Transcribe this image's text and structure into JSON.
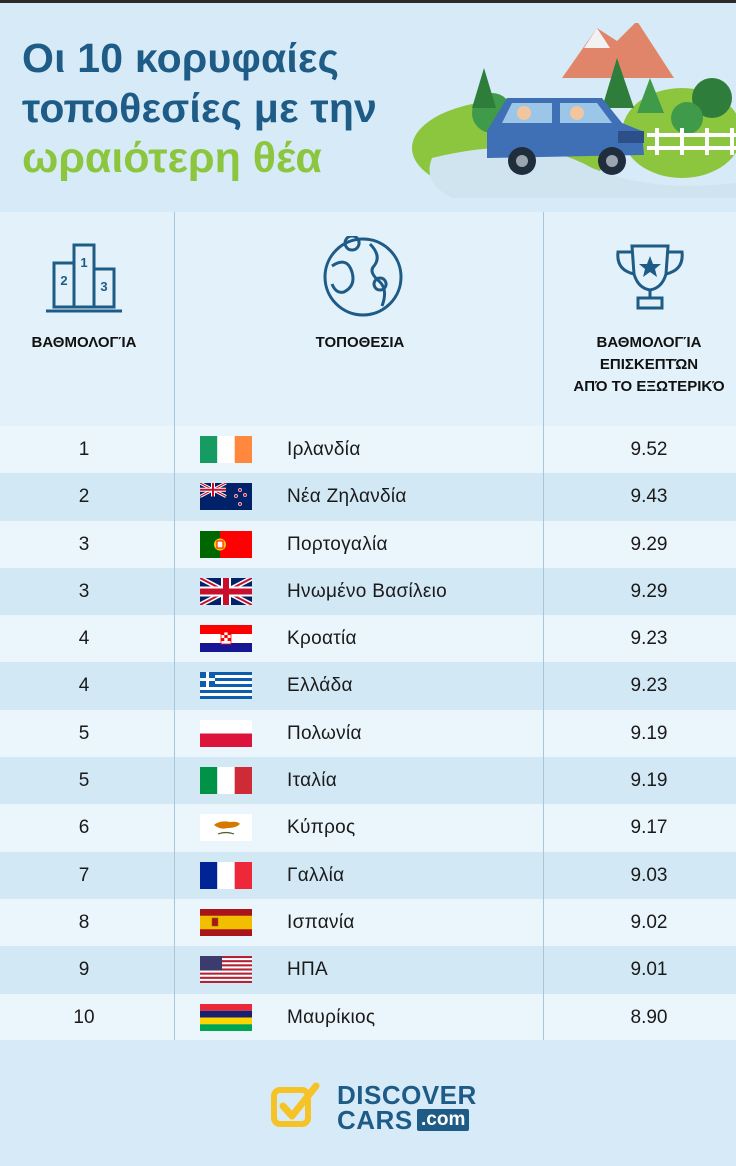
{
  "title": {
    "line1": "Οι 10 κορυφαίες",
    "line2": "τοποθεσίες με την",
    "line3": "ωραιότερη θέα"
  },
  "columns": {
    "rank": "ΒΑΘΜΟΛΟΓΊΑ",
    "location": "ΤΟΠΟΘΕΣΙΑ",
    "score_l1": "ΒΑΘΜΟΛΟΓΊΑ",
    "score_l2": "ΕΠΙΣΚΕΠΤΏΝ",
    "score_l3": "ΑΠΌ ΤΟ ΕΞΩΤΕΡΙΚΌ"
  },
  "rows": [
    {
      "rank": "1",
      "country": "Ιρλανδία",
      "score": "9.52",
      "flag": "ireland"
    },
    {
      "rank": "2",
      "country": "Νέα Ζηλανδία",
      "score": "9.43",
      "flag": "new-zealand"
    },
    {
      "rank": "3",
      "country": "Πορτογαλία",
      "score": "9.29",
      "flag": "portugal"
    },
    {
      "rank": "3",
      "country": "Ηνωμένο Βασίλειο",
      "score": "9.29",
      "flag": "united-kingdom"
    },
    {
      "rank": "4",
      "country": "Κροατία",
      "score": "9.23",
      "flag": "croatia"
    },
    {
      "rank": "4",
      "country": "Ελλάδα",
      "score": "9.23",
      "flag": "greece"
    },
    {
      "rank": "5",
      "country": "Πολωνία",
      "score": "9.19",
      "flag": "poland"
    },
    {
      "rank": "5",
      "country": "Ιταλία",
      "score": "9.19",
      "flag": "italy"
    },
    {
      "rank": "6",
      "country": "Κύπρος",
      "score": "9.17",
      "flag": "cyprus"
    },
    {
      "rank": "7",
      "country": "Γαλλία",
      "score": "9.03",
      "flag": "france"
    },
    {
      "rank": "8",
      "country": "Ισπανία",
      "score": "9.02",
      "flag": "spain"
    },
    {
      "rank": "9",
      "country": "ΗΠΑ",
      "score": "9.01",
      "flag": "usa"
    },
    {
      "rank": "10",
      "country": "Μαυρίκιος",
      "score": "8.90",
      "flag": "mauritius"
    }
  ],
  "logo": {
    "line1": "DISCOVER",
    "line2": "CARS",
    "suffix": ".com"
  },
  "colors": {
    "title_blue": "#1e5b86",
    "title_green": "#8cc63f",
    "background": "#d6ebf7",
    "row_light": "#eaf5fc",
    "row_dark": "#d2e8f5"
  },
  "icons": [
    "podium-icon",
    "globe-icon",
    "trophy-icon",
    "checkbox-logo-icon"
  ]
}
